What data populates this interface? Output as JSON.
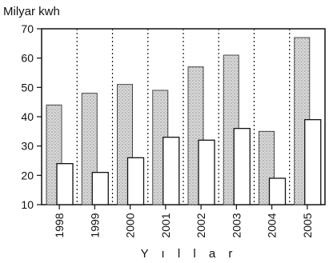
{
  "chart_data": {
    "type": "bar",
    "title": "Milyar kwh",
    "xlabel": "Y ı l l a r",
    "ylabel": "",
    "categories": [
      "1998",
      "1999",
      "2000",
      "2001",
      "2002",
      "2003",
      "2004",
      "2005"
    ],
    "series": [
      {
        "values": [
          44,
          48,
          51,
          49,
          57,
          61,
          35,
          67
        ],
        "color": "#cfcfcf",
        "pattern": "stippled"
      },
      {
        "values": [
          24,
          21,
          26,
          33,
          32,
          36,
          19,
          39
        ],
        "color": "#ffffff",
        "pattern": "plain"
      }
    ],
    "ylim": [
      10,
      70
    ],
    "yticks": [
      10,
      20,
      30,
      40,
      50,
      60,
      70
    ],
    "grid": false,
    "separators": "dotted-vertical",
    "legend": "none"
  }
}
